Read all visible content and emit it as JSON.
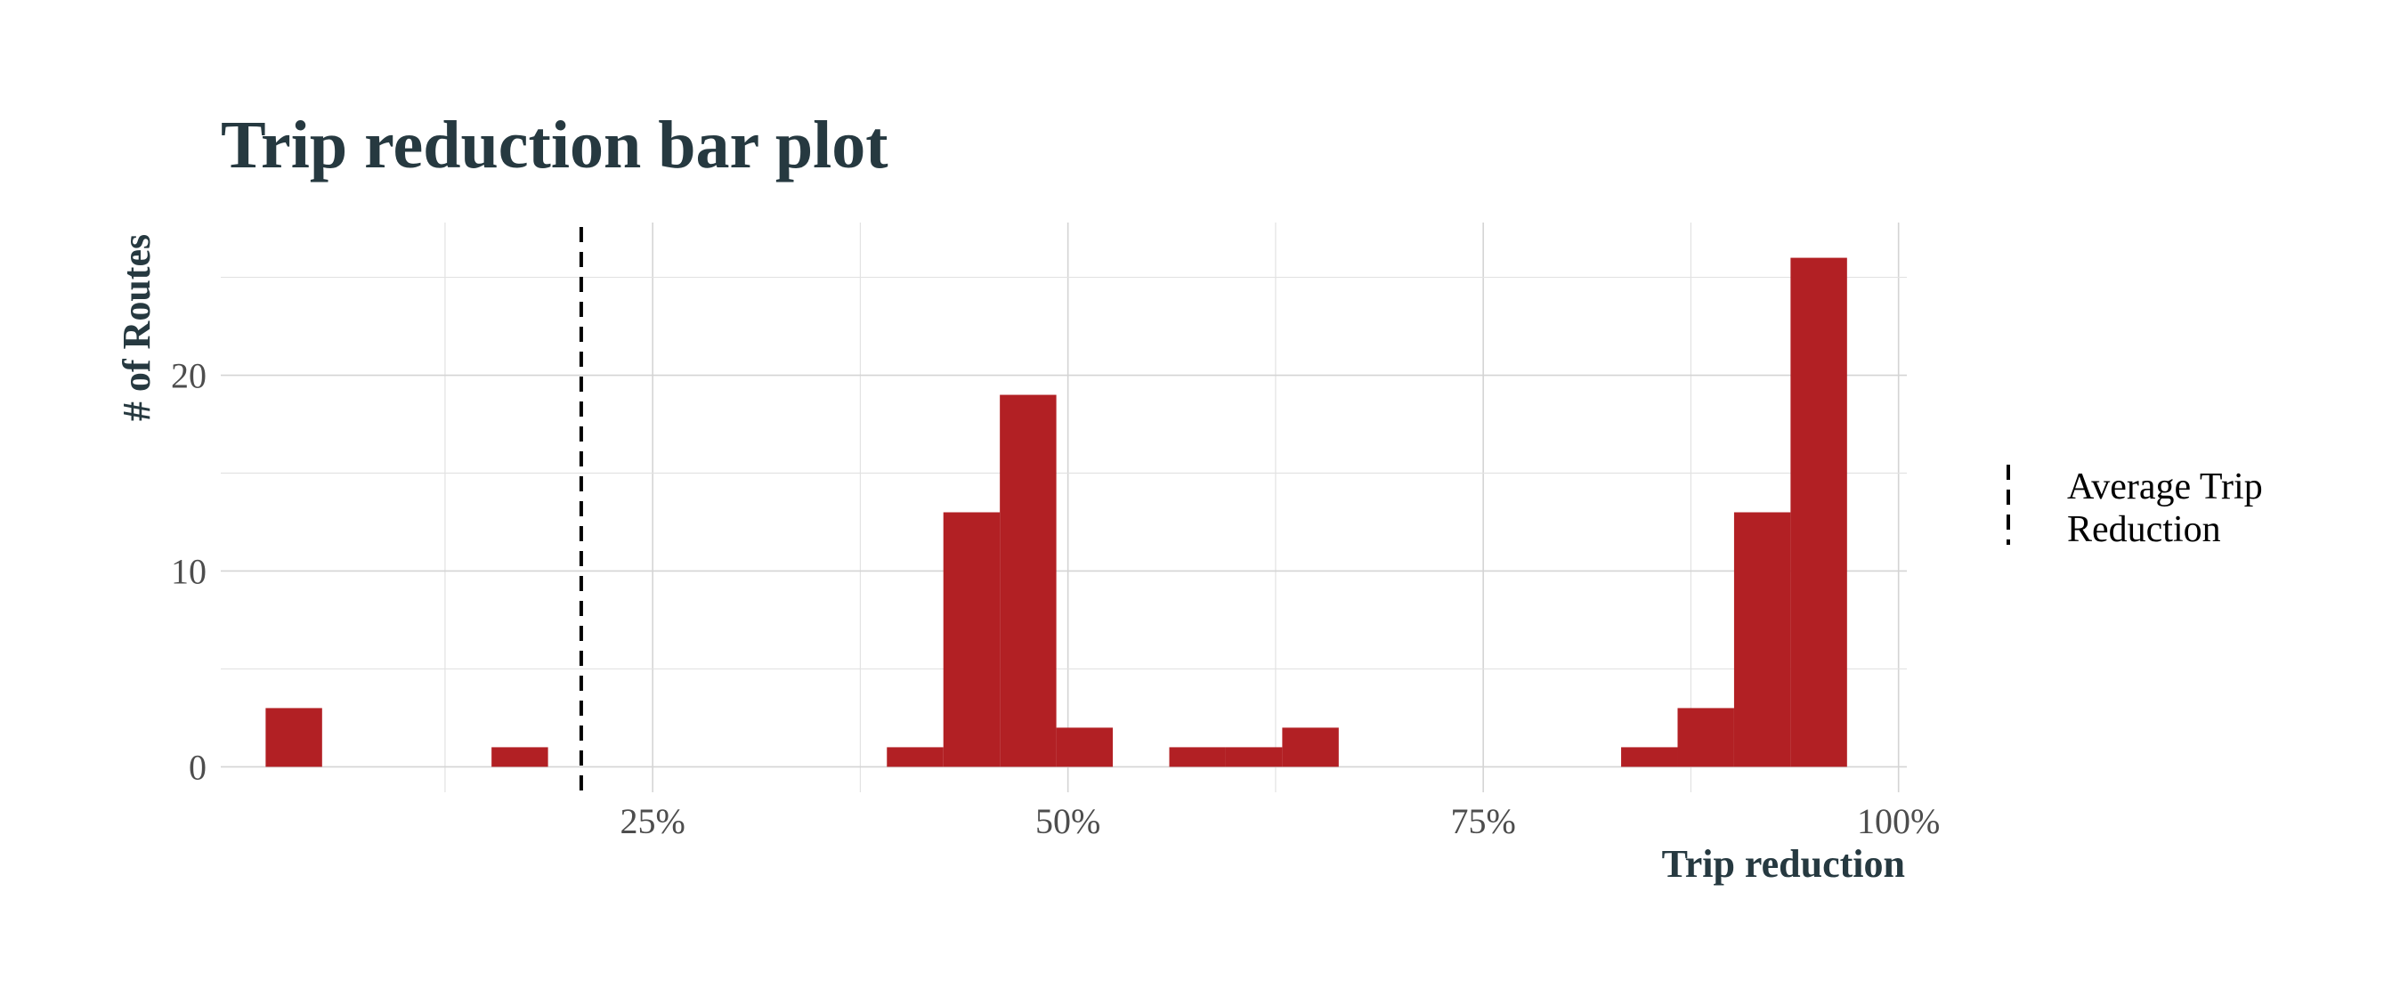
{
  "chart_data": {
    "type": "bar",
    "title": "Trip reduction bar plot",
    "xlabel": "Trip reduction",
    "ylabel": "# of Routes",
    "xlim": [
      -0.01,
      1.005
    ],
    "ylim": [
      -1.3,
      27.8
    ],
    "x_ticks": [
      0.25,
      0.5,
      0.75,
      1.0
    ],
    "x_tick_labels": [
      "25%",
      "50%",
      "75%",
      "100%"
    ],
    "y_ticks": [
      0,
      10,
      20
    ],
    "y_tick_labels": [
      "0",
      "10",
      "20"
    ],
    "grid": true,
    "bar_color": "#B22024",
    "bin_width": 0.034,
    "bins": [
      {
        "x": 0.034,
        "count": 3
      },
      {
        "x": 0.17,
        "count": 1
      },
      {
        "x": 0.408,
        "count": 1
      },
      {
        "x": 0.442,
        "count": 13
      },
      {
        "x": 0.476,
        "count": 19
      },
      {
        "x": 0.51,
        "count": 2
      },
      {
        "x": 0.578,
        "count": 1
      },
      {
        "x": 0.612,
        "count": 1
      },
      {
        "x": 0.646,
        "count": 2
      },
      {
        "x": 0.85,
        "count": 1
      },
      {
        "x": 0.884,
        "count": 3
      },
      {
        "x": 0.918,
        "count": 13
      },
      {
        "x": 0.952,
        "count": 26
      }
    ],
    "reference_line": {
      "x": 0.207,
      "label": "Average Trip Reduction",
      "color": "#000000",
      "style": "dashed"
    },
    "legend": {
      "position": "right",
      "lines": [
        "Average Trip",
        "Reduction"
      ]
    }
  }
}
